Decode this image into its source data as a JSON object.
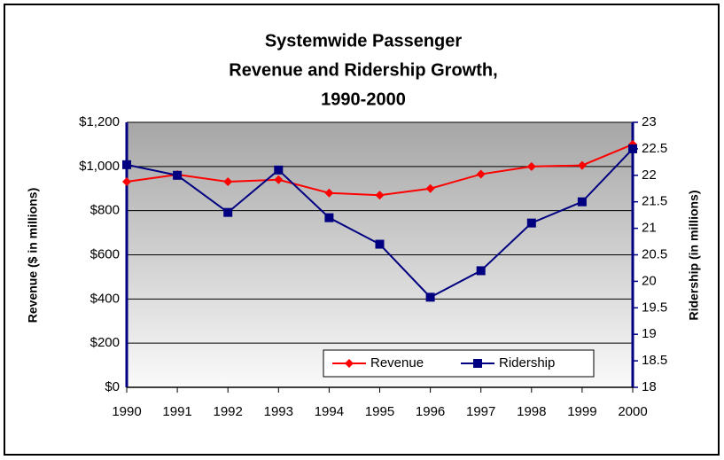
{
  "chart_data": {
    "type": "line",
    "title": [
      "Systemwide Passenger",
      "Revenue and Ridership Growth,",
      "1990-2000"
    ],
    "y_label": "Revenue ($ in millions)",
    "y2_label": "Ridership (in millions)",
    "categories": [
      "1990",
      "1991",
      "1992",
      "1993",
      "1994",
      "1995",
      "1996",
      "1997",
      "1998",
      "1999",
      "2000"
    ],
    "series": [
      {
        "name": "Revenue",
        "color": "#ff0000",
        "marker": "diamond",
        "values": [
          931,
          963,
          931,
          940,
          880,
          870,
          900,
          965,
          1000,
          1005,
          1100
        ]
      },
      {
        "name": "Ridership",
        "color": "#000080",
        "marker": "square",
        "axis": "y2",
        "values": [
          22.2,
          22.0,
          21.3,
          22.1,
          21.2,
          20.7,
          19.7,
          20.2,
          21.1,
          21.5,
          22.5
        ]
      }
    ],
    "ylim": [
      0,
      1200
    ],
    "yticks": [
      {
        "value": 0,
        "label": "$0"
      },
      {
        "value": 200,
        "label": "$200"
      },
      {
        "value": 400,
        "label": "$400"
      },
      {
        "value": 600,
        "label": "$600"
      },
      {
        "value": 800,
        "label": "$800"
      },
      {
        "value": 1000,
        "label": "$1,000"
      },
      {
        "value": 1200,
        "label": "$1,200"
      }
    ],
    "y2lim": [
      18,
      23
    ],
    "y2ticks": [
      18,
      18.5,
      19,
      19.5,
      20,
      20.5,
      21,
      21.5,
      22,
      22.5,
      23
    ],
    "grid": true,
    "legend": "lower right"
  }
}
